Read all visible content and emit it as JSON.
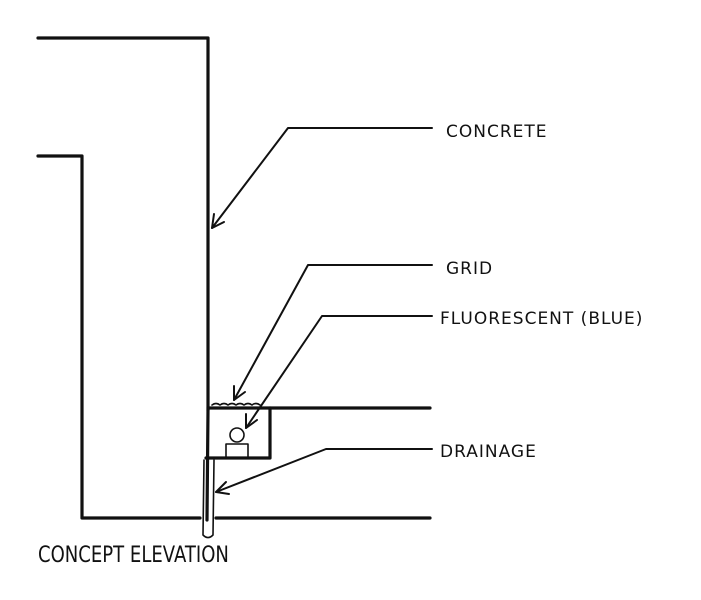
{
  "labels": {
    "concrete": "CONCRETE",
    "grid": "GRID",
    "fluorescent": "FLUORESCENT (BLUE)",
    "drainage": "DRAINAGE"
  },
  "caption": "CONCEPT ELEVATION",
  "colors": {
    "ink": "#111111",
    "background": "#ffffff"
  }
}
